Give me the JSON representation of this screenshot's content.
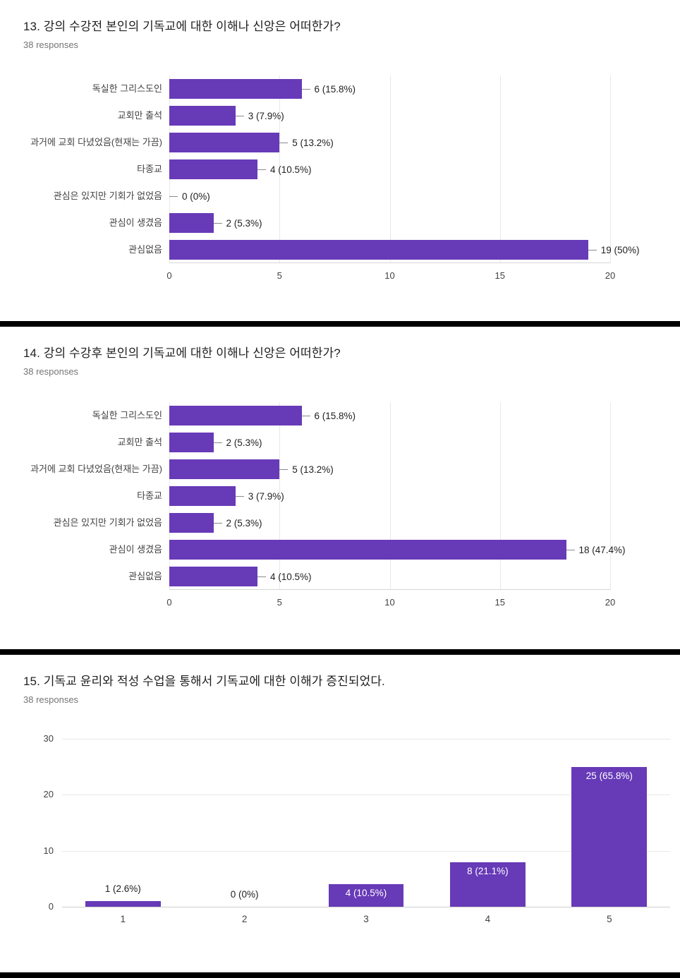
{
  "colors": {
    "bar": "#673AB7",
    "divider": "#000000",
    "title_text": "#212121",
    "muted_text": "#757575"
  },
  "chart_data": [
    {
      "type": "bar",
      "orientation": "horizontal",
      "title": "13. 강의 수강전 본인의 기독교에 대한 이해나 신앙은 어떠한가?",
      "responses": "38 responses",
      "categories": [
        "독실한 그리스도인",
        "교회만 출석",
        "과거에 교회 다녔었음(현재는 가끔)",
        "타종교",
        "관심은 있지만 기회가 없었음",
        "관심이 생겼음",
        "관심없음"
      ],
      "values": [
        6,
        3,
        5,
        4,
        0,
        2,
        19
      ],
      "data_labels": [
        "6 (15.8%)",
        "3 (7.9%)",
        "5 (13.2%)",
        "4 (10.5%)",
        "0 (0%)",
        "2 (5.3%)",
        "19 (50%)"
      ],
      "xlim": [
        0,
        20
      ],
      "xticks": [
        0,
        5,
        10,
        15,
        20
      ],
      "grid": true,
      "legend": "none"
    },
    {
      "type": "bar",
      "orientation": "horizontal",
      "title": "14. 강의 수강후 본인의 기독교에 대한 이해나 신앙은 어떠한가?",
      "responses": "38 responses",
      "categories": [
        "독실한 그리스도인",
        "교회만 출석",
        "과거에 교회 다녔었음(현재는 가끔)",
        "타종교",
        "관심은 있지만 기회가 없었음",
        "관심이 생겼음",
        "관심없음"
      ],
      "values": [
        6,
        2,
        5,
        3,
        2,
        18,
        4
      ],
      "data_labels": [
        "6 (15.8%)",
        "2 (5.3%)",
        "5 (13.2%)",
        "3 (7.9%)",
        "2 (5.3%)",
        "18 (47.4%)",
        "4 (10.5%)"
      ],
      "xlim": [
        0,
        20
      ],
      "xticks": [
        0,
        5,
        10,
        15,
        20
      ],
      "grid": true,
      "legend": "none"
    },
    {
      "type": "bar",
      "orientation": "vertical",
      "title": "15. 기독교 윤리와 적성 수업을 통해서 기독교에 대한 이해가 증진되었다.",
      "responses": "38 responses",
      "categories": [
        "1",
        "2",
        "3",
        "4",
        "5"
      ],
      "values": [
        1,
        0,
        4,
        8,
        25
      ],
      "data_labels": [
        "1 (2.6%)",
        "0 (0%)",
        "4 (10.5%)",
        "8 (21.1%)",
        "25 (65.8%)"
      ],
      "ylim": [
        0,
        30
      ],
      "yticks": [
        0,
        10,
        20,
        30
      ],
      "grid": true,
      "legend": "none"
    }
  ]
}
